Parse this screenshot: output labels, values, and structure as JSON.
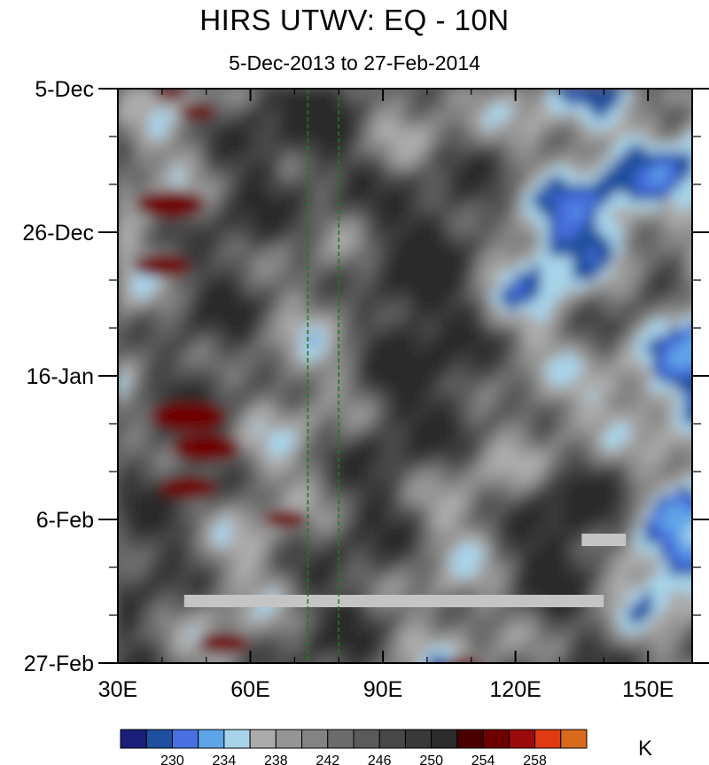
{
  "chart_data": {
    "type": "heatmap",
    "title": "HIRS UTWV: EQ - 10N",
    "subtitle": "5-Dec-2013 to 27-Feb-2014",
    "x_axis": {
      "range": [
        30,
        160
      ],
      "ticks": [
        30,
        60,
        90,
        120,
        150
      ],
      "tick_labels": [
        "30E",
        "60E",
        "90E",
        "120E",
        "150E"
      ]
    },
    "y_axis": {
      "range": [
        "2013-12-05",
        "2014-02-27"
      ],
      "reversed": true,
      "ticks": [
        "2013-12-05",
        "2013-12-26",
        "2014-01-16",
        "2014-02-06",
        "2014-02-27"
      ],
      "tick_labels": [
        "5-Dec",
        "26-Dec",
        "16-Jan",
        "6-Feb",
        "27-Feb"
      ]
    },
    "reference_lines": [
      {
        "x": 73,
        "style": "dashed",
        "color": "#1f7a1f"
      },
      {
        "x": 80,
        "style": "dashed",
        "color": "#1f7a1f"
      }
    ],
    "colorbar": {
      "unit": "K",
      "tick_labels": [
        "230",
        "234",
        "238",
        "242",
        "246",
        "250",
        "254",
        "258"
      ],
      "colors": [
        "#1b1f7a",
        "#1f4f9e",
        "#4a6fe0",
        "#5ea4e8",
        "#a8d4ea",
        "#ababab",
        "#959595",
        "#838383",
        "#6c6c6c",
        "#5a5a5a",
        "#474747",
        "#393939",
        "#2b2b2b",
        "#4a0000",
        "#6e0000",
        "#9a0a0a",
        "#e03a14",
        "#d86a1c"
      ]
    }
  }
}
